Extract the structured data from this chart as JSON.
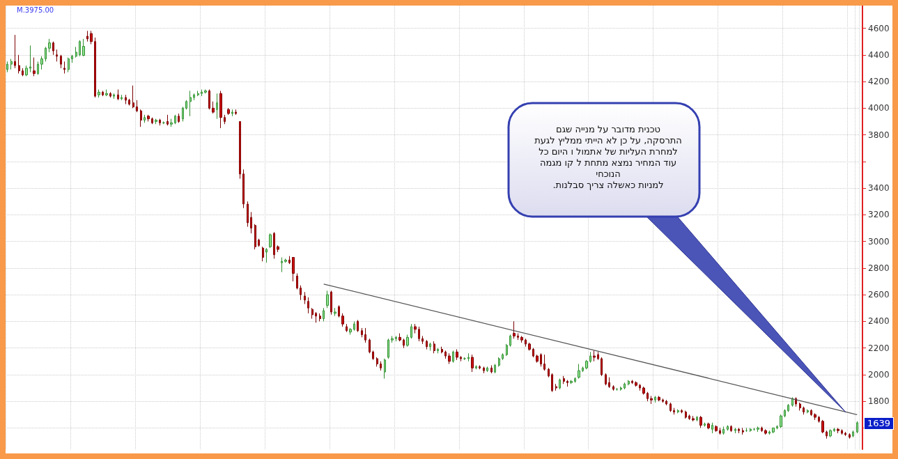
{
  "chart_data": {
    "type": "candlestick",
    "categories": [
      null,
      null,
      null,
      null,
      null,
      null,
      null,
      null,
      null,
      null,
      null,
      null,
      null,
      null,
      null,
      null,
      null,
      null,
      null,
      null,
      null,
      null,
      null,
      null,
      null,
      null,
      null,
      null,
      null,
      null,
      null,
      null,
      null,
      null,
      null,
      null,
      null,
      null,
      null,
      null,
      null,
      null,
      null,
      null,
      null,
      null,
      null,
      null,
      null,
      null,
      null,
      null,
      null,
      null,
      null,
      null,
      null,
      null,
      null,
      null,
      null,
      null,
      null,
      null,
      null,
      null,
      null,
      null,
      null,
      null,
      null,
      null,
      null,
      null,
      null,
      null,
      null,
      null,
      null,
      null,
      null,
      null,
      null,
      null,
      null,
      null,
      null,
      null,
      null,
      null,
      null,
      null,
      null,
      null,
      null,
      null,
      null,
      null,
      null,
      null,
      null,
      null,
      null,
      null,
      null,
      null,
      null,
      null,
      null,
      null,
      null,
      null,
      null,
      null,
      null,
      null,
      null,
      null,
      null,
      null,
      null,
      null,
      null,
      null,
      null,
      null,
      null,
      null,
      null,
      null,
      null,
      null,
      null,
      null,
      null,
      null,
      null,
      null,
      null,
      null,
      null,
      null,
      null,
      null,
      null,
      null,
      null,
      null,
      null,
      null,
      null,
      null,
      null,
      null,
      null,
      null,
      null,
      null,
      null,
      null,
      null,
      null,
      null,
      null,
      null,
      null,
      null,
      null,
      null,
      null,
      null,
      null,
      null,
      null,
      null,
      null,
      null,
      null,
      null,
      null,
      null,
      null,
      null,
      null,
      null,
      null,
      null,
      null,
      null,
      null,
      null,
      null,
      null,
      null,
      null,
      null,
      null,
      null,
      null,
      null,
      null,
      null,
      null,
      null,
      null,
      null,
      null,
      null,
      null,
      null,
      null,
      null,
      null,
      null,
      null,
      null,
      null,
      null,
      null,
      null,
      null,
      null,
      null,
      null
    ],
    "ohlc": [
      [
        4290,
        4350,
        4270,
        4330
      ],
      [
        4330,
        4370,
        4290,
        4350
      ],
      [
        4350,
        4550,
        4300,
        4320
      ],
      [
        4320,
        4400,
        4260,
        4280
      ],
      [
        4280,
        4300,
        4240,
        4250
      ],
      [
        4250,
        4320,
        4240,
        4300
      ],
      [
        4300,
        4470,
        4270,
        4310
      ],
      [
        4280,
        4380,
        4240,
        4260
      ],
      [
        4260,
        4350,
        4250,
        4330
      ],
      [
        4330,
        4390,
        4290,
        4370
      ],
      [
        4370,
        4460,
        4350,
        4450
      ],
      [
        4450,
        4520,
        4420,
        4490
      ],
      [
        4490,
        4500,
        4400,
        4430
      ],
      [
        4400,
        4440,
        4350,
        4390
      ],
      [
        4390,
        4400,
        4300,
        4330
      ],
      [
        4300,
        4350,
        4260,
        4290
      ],
      [
        4290,
        4380,
        4270,
        4370
      ],
      [
        4370,
        4400,
        4340,
        4390
      ],
      [
        4390,
        4460,
        4380,
        4420
      ],
      [
        4400,
        4510,
        4390,
        4500
      ],
      [
        4396,
        4520,
        4390,
        4464
      ],
      [
        4540,
        4580,
        4500,
        4520
      ],
      [
        4560,
        4580,
        4480,
        4500
      ],
      [
        4500,
        4530,
        4080,
        4090
      ],
      [
        4100,
        4140,
        4080,
        4120
      ],
      [
        4120,
        4130,
        4090,
        4100
      ],
      [
        4100,
        4140,
        4090,
        4110
      ],
      [
        4110,
        4120,
        4080,
        4090
      ],
      [
        4090,
        4110,
        4070,
        4100
      ],
      [
        4100,
        4140,
        4060,
        4070
      ],
      [
        4070,
        4100,
        4060,
        4080
      ],
      [
        4080,
        4100,
        4030,
        4060
      ],
      [
        4060,
        4070,
        4020,
        4030
      ],
      [
        4040,
        4170,
        4000,
        4010
      ],
      [
        4010,
        4060,
        3970,
        3980
      ],
      [
        3980,
        3990,
        3860,
        3910
      ],
      [
        3910,
        3950,
        3890,
        3930
      ],
      [
        3940,
        3950,
        3900,
        3920
      ],
      [
        3920,
        3930,
        3880,
        3890
      ],
      [
        3900,
        3920,
        3880,
        3910
      ],
      [
        3910,
        3920,
        3870,
        3890
      ],
      [
        3890,
        3900,
        3880,
        3890
      ],
      [
        3900,
        3950,
        3870,
        3880
      ],
      [
        3880,
        3920,
        3860,
        3890
      ],
      [
        3890,
        3950,
        3880,
        3940
      ],
      [
        3940,
        3960,
        3890,
        3900
      ],
      [
        3920,
        4010,
        3900,
        4000
      ],
      [
        4000,
        4060,
        3990,
        4050
      ],
      [
        4050,
        4130,
        3940,
        4080
      ],
      [
        4080,
        4110,
        4060,
        4100
      ],
      [
        4100,
        4130,
        4090,
        4110
      ],
      [
        4110,
        4140,
        4090,
        4120
      ],
      [
        4120,
        4140,
        4110,
        4130
      ],
      [
        4130,
        4140,
        3990,
        4000
      ],
      [
        4000,
        4050,
        3960,
        3970
      ],
      [
        3990,
        4110,
        3920,
        4040
      ],
      [
        4110,
        4130,
        3850,
        3930
      ],
      [
        3930,
        3950,
        3880,
        3900
      ],
      [
        3990,
        4000,
        3950,
        3960
      ],
      [
        3960,
        3990,
        3940,
        3970
      ],
      [
        3970,
        3990,
        3950,
        3960
      ],
      [
        3900,
        3900,
        3470,
        3506
      ],
      [
        3506,
        3540,
        3250,
        3281
      ],
      [
        3280,
        3300,
        3110,
        3140
      ],
      [
        3180,
        3220,
        3060,
        3100
      ],
      [
        3120,
        3130,
        2940,
        2960
      ],
      [
        3010,
        3020,
        2960,
        2970
      ],
      [
        2950,
        2960,
        2850,
        2880
      ],
      [
        2920,
        2950,
        2840,
        2940
      ],
      [
        2960,
        3060,
        2950,
        3050
      ],
      [
        3060,
        3070,
        2870,
        2900
      ],
      [
        2960,
        2970,
        2920,
        2940
      ],
      [
        2840,
        2880,
        2770,
        2850
      ],
      [
        2850,
        2870,
        2840,
        2860
      ],
      [
        2860,
        2890,
        2830,
        2840
      ],
      [
        2880,
        2880,
        2700,
        2760
      ],
      [
        2740,
        2760,
        2640,
        2650
      ],
      [
        2650,
        2670,
        2560,
        2600
      ],
      [
        2590,
        2620,
        2530,
        2560
      ],
      [
        2550,
        2580,
        2460,
        2500
      ],
      [
        2490,
        2500,
        2420,
        2450
      ],
      [
        2460,
        2470,
        2390,
        2440
      ],
      [
        2440,
        2460,
        2400,
        2420
      ],
      [
        2420,
        2500,
        2400,
        2480
      ],
      [
        2520,
        2630,
        2500,
        2600
      ],
      [
        2620,
        2630,
        2450,
        2470
      ],
      [
        2460,
        2500,
        2440,
        2470
      ],
      [
        2510,
        2520,
        2430,
        2440
      ],
      [
        2440,
        2460,
        2360,
        2380
      ],
      [
        2360,
        2380,
        2320,
        2330
      ],
      [
        2320,
        2350,
        2300,
        2340
      ],
      [
        2340,
        2400,
        2330,
        2380
      ],
      [
        2400,
        2410,
        2320,
        2330
      ],
      [
        2330,
        2350,
        2280,
        2300
      ],
      [
        2300,
        2350,
        2240,
        2260
      ],
      [
        2260,
        2270,
        2160,
        2170
      ],
      [
        2170,
        2180,
        2110,
        2120
      ],
      [
        2120,
        2130,
        2060,
        2080
      ],
      [
        2080,
        2100,
        2030,
        2050
      ],
      [
        2020,
        2120,
        1970,
        2110
      ],
      [
        2130,
        2270,
        2120,
        2260
      ],
      [
        2260,
        2290,
        2240,
        2270
      ],
      [
        2270,
        2290,
        2250,
        2280
      ],
      [
        2280,
        2310,
        2250,
        2260
      ],
      [
        2260,
        2270,
        2200,
        2220
      ],
      [
        2220,
        2300,
        2210,
        2280
      ],
      [
        2280,
        2380,
        2270,
        2360
      ],
      [
        2360,
        2380,
        2310,
        2340
      ],
      [
        2340,
        2360,
        2250,
        2270
      ],
      [
        2270,
        2290,
        2230,
        2250
      ],
      [
        2250,
        2260,
        2190,
        2210
      ],
      [
        2210,
        2240,
        2180,
        2230
      ],
      [
        2230,
        2250,
        2160,
        2180
      ],
      [
        2180,
        2200,
        2160,
        2190
      ],
      [
        2190,
        2210,
        2160,
        2170
      ],
      [
        2170,
        2180,
        2120,
        2140
      ],
      [
        2140,
        2160,
        2080,
        2100
      ],
      [
        2100,
        2180,
        2090,
        2170
      ],
      [
        2170,
        2190,
        2110,
        2130
      ],
      [
        2130,
        2140,
        2100,
        2120
      ],
      [
        2120,
        2130,
        2110,
        2120
      ],
      [
        2120,
        2160,
        2100,
        2130
      ],
      [
        2130,
        2150,
        2020,
        2050
      ],
      [
        2050,
        2070,
        2040,
        2060
      ],
      [
        2060,
        2070,
        2040,
        2050
      ],
      [
        2050,
        2060,
        2010,
        2030
      ],
      [
        2030,
        2060,
        2020,
        2050
      ],
      [
        2050,
        2070,
        2010,
        2020
      ],
      [
        2020,
        2080,
        2010,
        2070
      ],
      [
        2070,
        2130,
        2060,
        2120
      ],
      [
        2120,
        2160,
        2110,
        2150
      ],
      [
        2150,
        2230,
        2140,
        2220
      ],
      [
        2220,
        2300,
        2210,
        2290
      ],
      [
        2310,
        2400,
        2270,
        2290
      ],
      [
        2290,
        2310,
        2260,
        2280
      ],
      [
        2280,
        2290,
        2240,
        2260
      ],
      [
        2260,
        2270,
        2210,
        2230
      ],
      [
        2230,
        2240,
        2180,
        2190
      ],
      [
        2190,
        2200,
        2130,
        2140
      ],
      [
        2140,
        2150,
        2090,
        2100
      ],
      [
        2150,
        2160,
        2060,
        2080
      ],
      [
        2080,
        2150,
        2030,
        2040
      ],
      [
        2040,
        2050,
        1980,
        1990
      ],
      [
        2000,
        2010,
        1870,
        1880
      ],
      [
        1910,
        1930,
        1880,
        1900
      ],
      [
        1900,
        1970,
        1890,
        1960
      ],
      [
        1970,
        1990,
        1930,
        1950
      ],
      [
        1950,
        1960,
        1910,
        1940
      ],
      [
        1940,
        1960,
        1930,
        1950
      ],
      [
        1950,
        1980,
        1940,
        1970
      ],
      [
        1980,
        2080,
        1970,
        2030
      ],
      [
        2030,
        2060,
        2020,
        2050
      ],
      [
        2050,
        2110,
        2040,
        2100
      ],
      [
        2100,
        2170,
        2090,
        2140
      ],
      [
        2140,
        2180,
        2100,
        2130
      ],
      [
        2150,
        2170,
        2110,
        2120
      ],
      [
        2120,
        2130,
        1990,
        2000
      ],
      [
        2000,
        2010,
        1920,
        1930
      ],
      [
        1940,
        1980,
        1900,
        1910
      ],
      [
        1910,
        1920,
        1880,
        1890
      ],
      [
        1890,
        1900,
        1880,
        1890
      ],
      [
        1890,
        1910,
        1880,
        1900
      ],
      [
        1900,
        1940,
        1890,
        1930
      ],
      [
        1930,
        1960,
        1920,
        1950
      ],
      [
        1950,
        1960,
        1930,
        1940
      ],
      [
        1940,
        1950,
        1910,
        1920
      ],
      [
        1920,
        1930,
        1880,
        1900
      ],
      [
        1900,
        1910,
        1850,
        1860
      ],
      [
        1860,
        1870,
        1800,
        1820
      ],
      [
        1820,
        1840,
        1780,
        1810
      ],
      [
        1810,
        1840,
        1790,
        1830
      ],
      [
        1830,
        1840,
        1800,
        1810
      ],
      [
        1810,
        1820,
        1790,
        1800
      ],
      [
        1800,
        1810,
        1770,
        1780
      ],
      [
        1780,
        1790,
        1720,
        1730
      ],
      [
        1730,
        1750,
        1700,
        1720
      ],
      [
        1720,
        1740,
        1710,
        1730
      ],
      [
        1730,
        1740,
        1710,
        1720
      ],
      [
        1720,
        1730,
        1670,
        1680
      ],
      [
        1690,
        1700,
        1660,
        1670
      ],
      [
        1670,
        1690,
        1650,
        1660
      ],
      [
        1660,
        1690,
        1650,
        1680
      ],
      [
        1680,
        1690,
        1600,
        1620
      ],
      [
        1620,
        1640,
        1610,
        1630
      ],
      [
        1630,
        1640,
        1590,
        1600
      ],
      [
        1590,
        1640,
        1560,
        1620
      ],
      [
        1610,
        1620,
        1570,
        1580
      ],
      [
        1580,
        1600,
        1550,
        1560
      ],
      [
        1560,
        1610,
        1550,
        1590
      ],
      [
        1590,
        1620,
        1580,
        1610
      ],
      [
        1610,
        1620,
        1570,
        1580
      ],
      [
        1580,
        1600,
        1560,
        1590
      ],
      [
        1590,
        1600,
        1560,
        1580
      ],
      [
        1580,
        1600,
        1550,
        1570
      ],
      [
        1580,
        1600,
        1570,
        1580
      ],
      [
        1580,
        1600,
        1570,
        1590
      ],
      [
        1590,
        1600,
        1580,
        1590
      ],
      [
        1590,
        1610,
        1570,
        1600
      ],
      [
        1600,
        1610,
        1570,
        1580
      ],
      [
        1580,
        1590,
        1550,
        1560
      ],
      [
        1560,
        1580,
        1550,
        1570
      ],
      [
        1570,
        1600,
        1560,
        1600
      ],
      [
        1600,
        1620,
        1590,
        1610
      ],
      [
        1610,
        1700,
        1600,
        1690
      ],
      [
        1690,
        1740,
        1680,
        1730
      ],
      [
        1730,
        1780,
        1720,
        1770
      ],
      [
        1770,
        1830,
        1760,
        1820
      ],
      [
        1820,
        1830,
        1760,
        1780
      ],
      [
        1780,
        1790,
        1730,
        1750
      ],
      [
        1750,
        1760,
        1700,
        1720
      ],
      [
        1720,
        1740,
        1710,
        1730
      ],
      [
        1730,
        1740,
        1690,
        1700
      ],
      [
        1700,
        1710,
        1660,
        1680
      ],
      [
        1680,
        1690,
        1640,
        1650
      ],
      [
        1650,
        1660,
        1560,
        1570
      ],
      [
        1570,
        1580,
        1520,
        1540
      ],
      [
        1540,
        1590,
        1530,
        1580
      ],
      [
        1580,
        1600,
        1570,
        1590
      ],
      [
        1590,
        1600,
        1560,
        1580
      ],
      [
        1580,
        1590,
        1550,
        1560
      ],
      [
        1560,
        1570,
        1540,
        1550
      ],
      [
        1550,
        1560,
        1520,
        1530
      ],
      [
        1540,
        1580,
        1530,
        1570
      ],
      [
        1570,
        1650,
        1560,
        1639
      ]
    ],
    "series": [
      {
        "type": "line",
        "color": "#555555",
        "values": [
          null,
          null,
          null,
          null,
          null,
          null,
          null,
          null,
          null,
          null,
          null,
          null,
          null,
          null,
          null,
          null,
          null,
          null,
          null,
          null,
          null,
          null,
          null,
          null,
          null,
          null,
          null,
          null,
          null,
          null,
          null,
          null,
          null,
          null,
          null,
          null,
          null,
          null,
          null,
          null,
          null,
          null,
          null,
          null,
          null,
          null,
          null,
          null,
          null,
          null,
          null,
          null,
          null,
          null,
          null,
          null,
          null,
          null,
          null,
          null,
          null,
          null,
          null,
          null,
          null,
          null,
          null,
          null,
          null,
          null,
          null,
          null,
          null,
          null,
          null,
          null,
          null,
          null,
          null,
          null,
          null,
          null,
          null,
          2680,
          null,
          null,
          null,
          null,
          null,
          null,
          null,
          null,
          null,
          null,
          null,
          null,
          null,
          null,
          null,
          null,
          null,
          null,
          null,
          null,
          null,
          null,
          null,
          null,
          null,
          null,
          null,
          null,
          null,
          null,
          null,
          null,
          null,
          null,
          null,
          null,
          null,
          null,
          null,
          null,
          null,
          null,
          null,
          null,
          null,
          null,
          null,
          null,
          null,
          null,
          null,
          null,
          null,
          null,
          null,
          null,
          null,
          null,
          null,
          null,
          null,
          null,
          null,
          null,
          null,
          null,
          null,
          null,
          null,
          null,
          null,
          null,
          null,
          null,
          null,
          null,
          null,
          null,
          null,
          null,
          null,
          null,
          null,
          null,
          null,
          null,
          null,
          null,
          null,
          null,
          null,
          null,
          null,
          null,
          null,
          null,
          null,
          null,
          null,
          null,
          null,
          null,
          null,
          null,
          null,
          null,
          null,
          null,
          null,
          null,
          null,
          null,
          null,
          null,
          null,
          null,
          null,
          null,
          null,
          null,
          null,
          null,
          null,
          null,
          null,
          null,
          null,
          null,
          null,
          null,
          null,
          null,
          null,
          null,
          null,
          null,
          null,
          null,
          null,
          1700
        ]
      }
    ],
    "ylim": [
      1440,
      4770
    ],
    "yticks": [
      {
        "value": 1600,
        "label": null
      },
      1800,
      2000,
      2200,
      2400,
      2600,
      2800,
      3000,
      3200,
      3400,
      {
        "value": 3600,
        "label": null
      },
      3800,
      4000,
      4200,
      4400,
      4600
    ],
    "grid": true,
    "annotations": [
      "M.3975.00",
      "1639",
      "טכנית מדובר על מנייה שגם\nהתרסקה, על כן לא הייתי ממליץ לגעת\nלמחרת העליות של אתמול ו היום כל\nעוד המחיר נמצא מתחת ל קו מגמה\nהנוכחי\nלמניות כאשלה צריך סבלנות."
    ]
  }
}
